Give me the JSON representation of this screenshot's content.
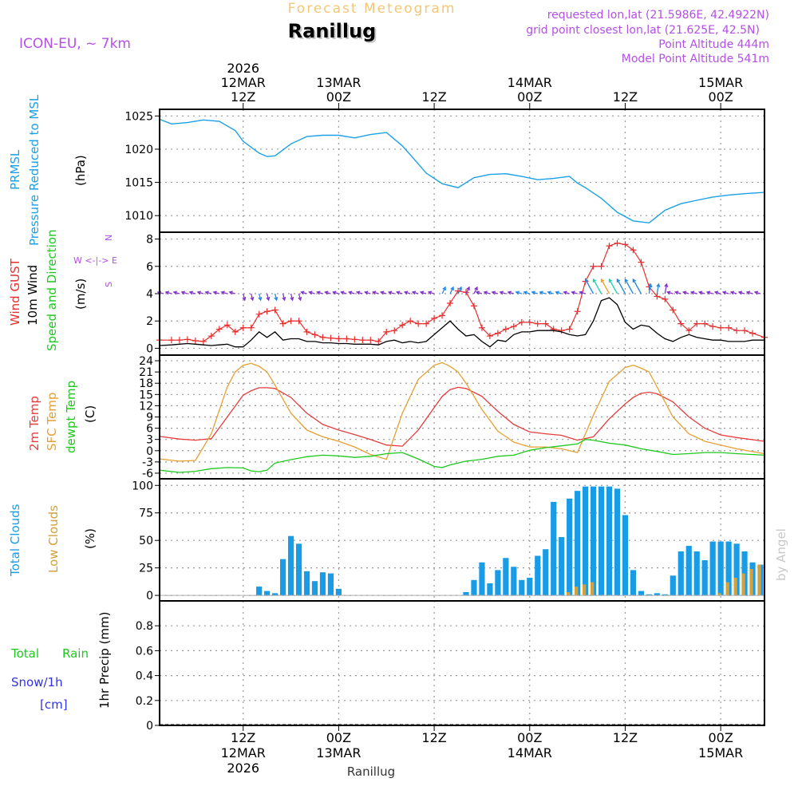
{
  "header": {
    "super_title": "Forecast Meteogram",
    "station": "Ranillug",
    "model": "ICON-EU, ~ 7km",
    "requested": "requested lon,lat (21.5986E, 42.4922N)",
    "grid_point": "grid point closest lon,lat (21.625E, 42.5N)",
    "point_alt": "Point Altitude 444m",
    "model_alt": "Model Point Altitude 541m",
    "footer_station": "Ranillug",
    "credit": "by Angel"
  },
  "time_axis": {
    "t_start": -10.5,
    "t_end": 65.5,
    "ticks": [
      {
        "t": 0,
        "top": [
          "2026",
          "12MAR",
          "12Z"
        ],
        "bottom": [
          "12Z",
          "12MAR",
          "2026"
        ]
      },
      {
        "t": 12,
        "top": [
          "13MAR",
          "00Z"
        ],
        "bottom": [
          "00Z",
          "13MAR"
        ]
      },
      {
        "t": 24,
        "top": [
          "12Z"
        ],
        "bottom": [
          "12Z"
        ]
      },
      {
        "t": 36,
        "top": [
          "14MAR",
          "00Z"
        ],
        "bottom": [
          "00Z",
          "14MAR"
        ]
      },
      {
        "t": 48,
        "top": [
          "12Z"
        ],
        "bottom": [
          "12Z"
        ]
      },
      {
        "t": 60,
        "top": [
          "15MAR",
          "00Z"
        ],
        "bottom": [
          "00Z",
          "15MAR"
        ]
      }
    ]
  },
  "colors": {
    "pressure": "#1aa0e6",
    "gust": "#e62e2e",
    "wind": "#000000",
    "temp2m": "#e63c3c",
    "sfc": "#e6a032",
    "dew": "#1ec81e",
    "total_clouds": "#1a9be6",
    "low_clouds": "#d2a03c",
    "rain": "#1ec81e",
    "snow": "#3232e6",
    "title_gold": "#f0c878",
    "info": "#b450e6"
  },
  "chart_data": [
    {
      "type": "line",
      "panel": "pressure",
      "labels": [
        "PRMSL",
        "Pressure Reduced to MSL"
      ],
      "unit": "(hPa)",
      "ylim": [
        1007.5,
        1026
      ],
      "yticks": [
        1010,
        1015,
        1020,
        1025
      ],
      "series": [
        {
          "name": "PRMSL",
          "x": [
            -10.5,
            -9,
            -7,
            -5,
            -3,
            -1,
            0,
            2,
            3,
            4,
            6,
            8,
            10,
            12,
            14,
            16,
            18,
            20,
            22,
            23,
            25,
            27,
            29,
            31,
            33,
            35,
            37,
            39,
            41,
            42,
            43,
            45,
            47,
            49,
            51,
            53,
            55,
            57,
            59,
            61,
            63,
            65.5
          ],
          "values": [
            1024.5,
            1023.8,
            1024.0,
            1024.4,
            1024.2,
            1022.8,
            1021.2,
            1019.4,
            1018.9,
            1019.0,
            1020.8,
            1021.9,
            1022.1,
            1022.1,
            1021.7,
            1022.2,
            1022.5,
            1020.5,
            1017.8,
            1016.4,
            1014.8,
            1014.2,
            1015.7,
            1016.2,
            1016.3,
            1015.9,
            1015.4,
            1015.6,
            1015.9,
            1014.9,
            1014.2,
            1012.6,
            1010.5,
            1009.2,
            1008.9,
            1010.8,
            1011.8,
            1012.3,
            1012.8,
            1013.1,
            1013.3,
            1013.5
          ]
        }
      ]
    },
    {
      "type": "line",
      "panel": "wind",
      "labels": [
        "Wind GUST",
        "10m Wind",
        "Speed and Direction"
      ],
      "unit": "(m/s)",
      "compass": [
        "N",
        "W <-|-> E",
        "S"
      ],
      "ylim": [
        -0.5,
        8.5
      ],
      "yticks": [
        0,
        2,
        4,
        6,
        8
      ],
      "x": [
        -10.5,
        -9,
        -8,
        -7,
        -6,
        -5,
        -4,
        -3,
        -2,
        -1,
        0,
        1,
        2,
        3,
        4,
        5,
        6,
        7,
        8,
        9,
        10,
        11,
        12,
        13,
        14,
        15,
        16,
        17,
        18,
        19,
        20,
        21,
        22,
        23,
        24,
        25,
        26,
        27,
        28,
        29,
        30,
        31,
        32,
        33,
        34,
        35,
        36,
        37,
        38,
        39,
        40,
        41,
        42,
        43,
        44,
        45,
        46,
        47,
        48,
        49,
        50,
        51,
        52,
        53,
        54,
        55,
        56,
        57,
        58,
        59,
        60,
        61,
        62,
        63,
        64,
        65.5
      ],
      "series": [
        {
          "name": "Wind GUST",
          "values": [
            0.6,
            0.6,
            0.6,
            0.65,
            0.55,
            0.5,
            0.9,
            1.4,
            1.7,
            1.2,
            1.5,
            1.5,
            2.5,
            2.7,
            2.8,
            1.8,
            2.0,
            2.0,
            1.2,
            1.0,
            0.8,
            0.75,
            0.7,
            0.7,
            0.65,
            0.6,
            0.6,
            0.5,
            1.2,
            1.3,
            1.7,
            2.0,
            1.8,
            1.8,
            2.2,
            2.4,
            3.3,
            4.2,
            4.1,
            3.1,
            1.5,
            0.9,
            1.1,
            1.4,
            1.6,
            1.9,
            1.9,
            1.8,
            1.8,
            1.4,
            1.3,
            1.4,
            2.7,
            4.9,
            6.0,
            6.0,
            7.5,
            7.7,
            7.6,
            7.2,
            6.3,
            4.5,
            3.8,
            3.6,
            2.8,
            1.8,
            1.3,
            1.8,
            1.8,
            1.6,
            1.5,
            1.5,
            1.3,
            1.3,
            1.1,
            0.8
          ]
        },
        {
          "name": "10m Wind",
          "values": [
            0.2,
            0.25,
            0.3,
            0.35,
            0.3,
            0.25,
            0.2,
            0.25,
            0.3,
            0.1,
            0.1,
            0.6,
            1.2,
            0.8,
            1.2,
            0.6,
            0.7,
            0.7,
            0.5,
            0.5,
            0.4,
            0.4,
            0.35,
            0.35,
            0.3,
            0.3,
            0.3,
            0.25,
            0.5,
            0.6,
            0.4,
            0.5,
            0.4,
            0.5,
            1.0,
            1.5,
            2.0,
            1.4,
            0.9,
            1.0,
            0.5,
            0.1,
            0.6,
            0.5,
            1.0,
            1.2,
            1.2,
            1.3,
            1.3,
            1.3,
            1.2,
            1.0,
            0.9,
            1.0,
            2.0,
            3.5,
            3.7,
            3.2,
            1.9,
            1.4,
            1.7,
            1.6,
            1.1,
            0.7,
            0.5,
            0.8,
            1.0,
            0.8,
            0.7,
            0.6,
            0.6,
            0.5,
            0.5,
            0.5,
            0.6,
            0.6
          ]
        }
      ]
    },
    {
      "type": "line",
      "panel": "temperature",
      "labels": [
        "2m Temp",
        "SFC Temp",
        "dewpt Temp"
      ],
      "unit": "(C)",
      "ylim": [
        -7.5,
        25.5
      ],
      "yticks": [
        -6,
        -3,
        0,
        3,
        6,
        9,
        12,
        15,
        18,
        21,
        24
      ],
      "series": [
        {
          "name": "2m Temp",
          "x": [
            -10.5,
            -8,
            -6,
            -4,
            -2,
            0,
            1,
            2,
            3,
            4,
            6,
            8,
            10,
            12,
            14,
            16,
            18,
            20,
            22,
            24,
            25,
            26,
            27,
            28,
            30,
            32,
            34,
            36,
            38,
            40,
            42,
            44,
            46,
            48,
            49,
            50,
            51,
            52,
            54,
            56,
            58,
            60,
            62,
            65.5
          ],
          "values": [
            3.8,
            3.1,
            2.8,
            3.2,
            9,
            14.8,
            16,
            16.8,
            16.8,
            16.6,
            14.2,
            10,
            7,
            5.5,
            4.3,
            3,
            1.5,
            1.2,
            5.5,
            11.5,
            14.5,
            16.3,
            16.9,
            16.6,
            14.5,
            10.5,
            7,
            5,
            4.5,
            4.1,
            2.8,
            3.7,
            8.5,
            12.5,
            14.2,
            15.3,
            15.6,
            15.2,
            13,
            9,
            6,
            4.2,
            3.5,
            2.5
          ]
        },
        {
          "name": "SFC Temp",
          "x": [
            -10.5,
            -8,
            -6,
            -4,
            -2,
            -1,
            0,
            1,
            2,
            3,
            4,
            6,
            8,
            10,
            12,
            14,
            16,
            18,
            20,
            22,
            24,
            25,
            26,
            27,
            28,
            30,
            32,
            34,
            36,
            38,
            40,
            42,
            44,
            46,
            48,
            49,
            50,
            51,
            52,
            54,
            56,
            58,
            60,
            62,
            65.5
          ],
          "values": [
            -2.2,
            -2.8,
            -2.6,
            4.5,
            17,
            21,
            22.8,
            23.3,
            22.5,
            21,
            17.5,
            10,
            5.5,
            3.7,
            2.5,
            1,
            -1,
            -2.3,
            10,
            19,
            22.8,
            23.5,
            22.5,
            21,
            18,
            11,
            5.2,
            2.3,
            1,
            1,
            0.5,
            -0.5,
            9.5,
            18.5,
            22.2,
            22.8,
            22,
            21,
            17,
            9,
            4.5,
            2.5,
            1.5,
            0.5,
            -0.8
          ]
        },
        {
          "name": "dewpt Temp",
          "x": [
            -10.5,
            -8,
            -6,
            -4,
            -2,
            0,
            1,
            2,
            3,
            4,
            6,
            8,
            10,
            12,
            14,
            16,
            18,
            20,
            22,
            24,
            25,
            26,
            28,
            30,
            32,
            34,
            36,
            38,
            40,
            42,
            43,
            44,
            46,
            48,
            50,
            52,
            54,
            56,
            58,
            60,
            62,
            65.5
          ],
          "values": [
            -5.2,
            -5.8,
            -5.5,
            -4.8,
            -4.5,
            -4.6,
            -5.4,
            -5.6,
            -5.2,
            -3.3,
            -2.4,
            -1.6,
            -1.2,
            -1.4,
            -1.8,
            -1.5,
            -0.8,
            -0.5,
            -2.2,
            -4.2,
            -4.5,
            -3.8,
            -2.8,
            -2.3,
            -1.5,
            -1.2,
            0.1,
            0.8,
            1.3,
            1.8,
            3.0,
            2.8,
            2.0,
            1.5,
            0.5,
            -0.2,
            -1.0,
            -0.8,
            -0.5,
            -0.5,
            -0.8,
            -1.2
          ]
        }
      ]
    },
    {
      "type": "bar",
      "panel": "clouds",
      "labels": [
        "Total Clouds",
        "Low Clouds"
      ],
      "unit": "(%)",
      "ylim": [
        -5,
        106
      ],
      "yticks": [
        0,
        25,
        50,
        75,
        100
      ],
      "series": [
        {
          "name": "Total Clouds",
          "x": [
            2,
            3,
            4,
            5,
            6,
            7,
            8,
            9,
            10,
            11,
            12,
            13,
            14,
            15,
            16,
            17,
            18,
            19,
            20,
            21,
            22,
            23,
            24,
            25,
            26,
            27,
            28,
            29,
            30,
            31,
            32,
            33,
            34,
            35,
            36,
            37,
            38,
            39,
            40,
            41,
            42,
            43,
            44,
            45,
            46,
            47,
            48,
            49,
            50,
            51,
            52,
            53,
            54,
            55,
            56,
            57,
            58,
            59,
            60,
            61,
            62,
            63,
            64,
            65
          ],
          "values": [
            8,
            4,
            2,
            33,
            54,
            47,
            22,
            13,
            21,
            20,
            6,
            0,
            0,
            0,
            0,
            0,
            0,
            0,
            0,
            0,
            0,
            0,
            0,
            0,
            0,
            0,
            3,
            14,
            30,
            11,
            23,
            34,
            26,
            14,
            16,
            36,
            42,
            85,
            53,
            88,
            95,
            99,
            99,
            99,
            99,
            97,
            73,
            23,
            4,
            1,
            2,
            1,
            18,
            40,
            45,
            40,
            32,
            49,
            49,
            49,
            47,
            40,
            30,
            28
          ]
        },
        {
          "name": "Low Clouds",
          "x": [
            41,
            42,
            43,
            44,
            60,
            61,
            62,
            63,
            64,
            65
          ],
          "values": [
            3,
            8,
            10,
            12,
            2,
            12,
            16,
            20,
            24,
            28
          ]
        }
      ]
    },
    {
      "type": "line",
      "panel": "precipitation",
      "labels": [
        "Total",
        "Rain",
        "Snow/1h",
        "[cm]"
      ],
      "unit": "1hr Precip (mm)",
      "ylim": [
        0,
        1.0
      ],
      "yticks": [
        0,
        0.2,
        0.4,
        0.6,
        0.8
      ],
      "ytick_labels": [
        "0",
        "0.2",
        "0.4",
        "0.6",
        "0.8"
      ],
      "series": [
        {
          "name": "Total",
          "x": [
            -10.5,
            65.5
          ],
          "values": [
            0,
            0
          ]
        },
        {
          "name": "Rain",
          "x": [
            -10.5,
            65.5
          ],
          "values": [
            0,
            0
          ]
        }
      ]
    }
  ]
}
